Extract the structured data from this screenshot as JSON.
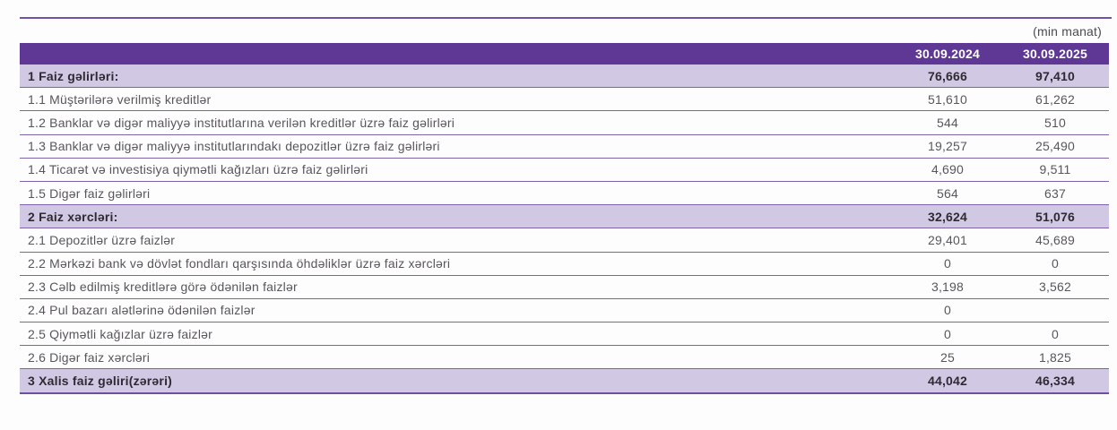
{
  "meta": {
    "unit_note": "(min manat)"
  },
  "colors": {
    "header_purple": "#5f3795",
    "section_purple": "#d1c9e4",
    "divider_purple": "#7e63a8",
    "text_gray": "#59555d"
  },
  "table": {
    "columns": [
      "30.09.2024",
      "30.09.2025"
    ],
    "rows": [
      {
        "type": "section",
        "label": "1 Faiz gəlirləri:",
        "v2024": "76,666",
        "v2025": "97,410"
      },
      {
        "type": "item",
        "label": "1.1 Müştərilərə verilmiş kreditlər",
        "v2024": "51,610",
        "v2025": "61,262"
      },
      {
        "type": "item",
        "label": "1.2 Banklar və digər maliyyə institutlarına verilən kreditlər üzrə faiz gəlirləri",
        "v2024": "544",
        "v2025": "510"
      },
      {
        "type": "item",
        "label": "1.3 Banklar və digər maliyyə institutlarındakı depozitlər üzrə faiz gəlirləri",
        "v2024": "19,257",
        "v2025": "25,490"
      },
      {
        "type": "item",
        "label": "1.4 Ticarət və investisiya qiymətli kağızları üzrə faiz gəlirləri",
        "v2024": "4,690",
        "v2025": "9,511"
      },
      {
        "type": "item",
        "label": "1.5 Digər faiz gəlirləri",
        "v2024": "564",
        "v2025": "637"
      },
      {
        "type": "section",
        "label": "2 Faiz xərcləri:",
        "v2024": "32,624",
        "v2025": "51,076"
      },
      {
        "type": "item",
        "label": "2.1 Depozitlər üzrə faizlər",
        "v2024": "29,401",
        "v2025": "45,689"
      },
      {
        "type": "item",
        "label": "2.2 Mərkəzi bank və dövlət fondları qarşısında öhdəliklər üzrə faiz xərcləri",
        "v2024": "0",
        "v2025": "0"
      },
      {
        "type": "item",
        "label": "2.3 Cəlb edilmiş kreditlərə görə ödənilən faizlər",
        "v2024": "3,198",
        "v2025": "3,562"
      },
      {
        "type": "item",
        "label": "2.4 Pul bazarı alətlərinə ödənilən faizlər",
        "v2024": "0",
        "v2025": ""
      },
      {
        "type": "item",
        "label": "2.5 Qiymətli kağızlar üzrə faizlər",
        "v2024": "0",
        "v2025": "0"
      },
      {
        "type": "item",
        "label": "2.6 Digər faiz xərcləri",
        "v2024": "25",
        "v2025": "1,825"
      },
      {
        "type": "section",
        "label": "3 Xalis faiz gəliri(zərəri)",
        "v2024": "44,042",
        "v2025": "46,334"
      }
    ]
  }
}
